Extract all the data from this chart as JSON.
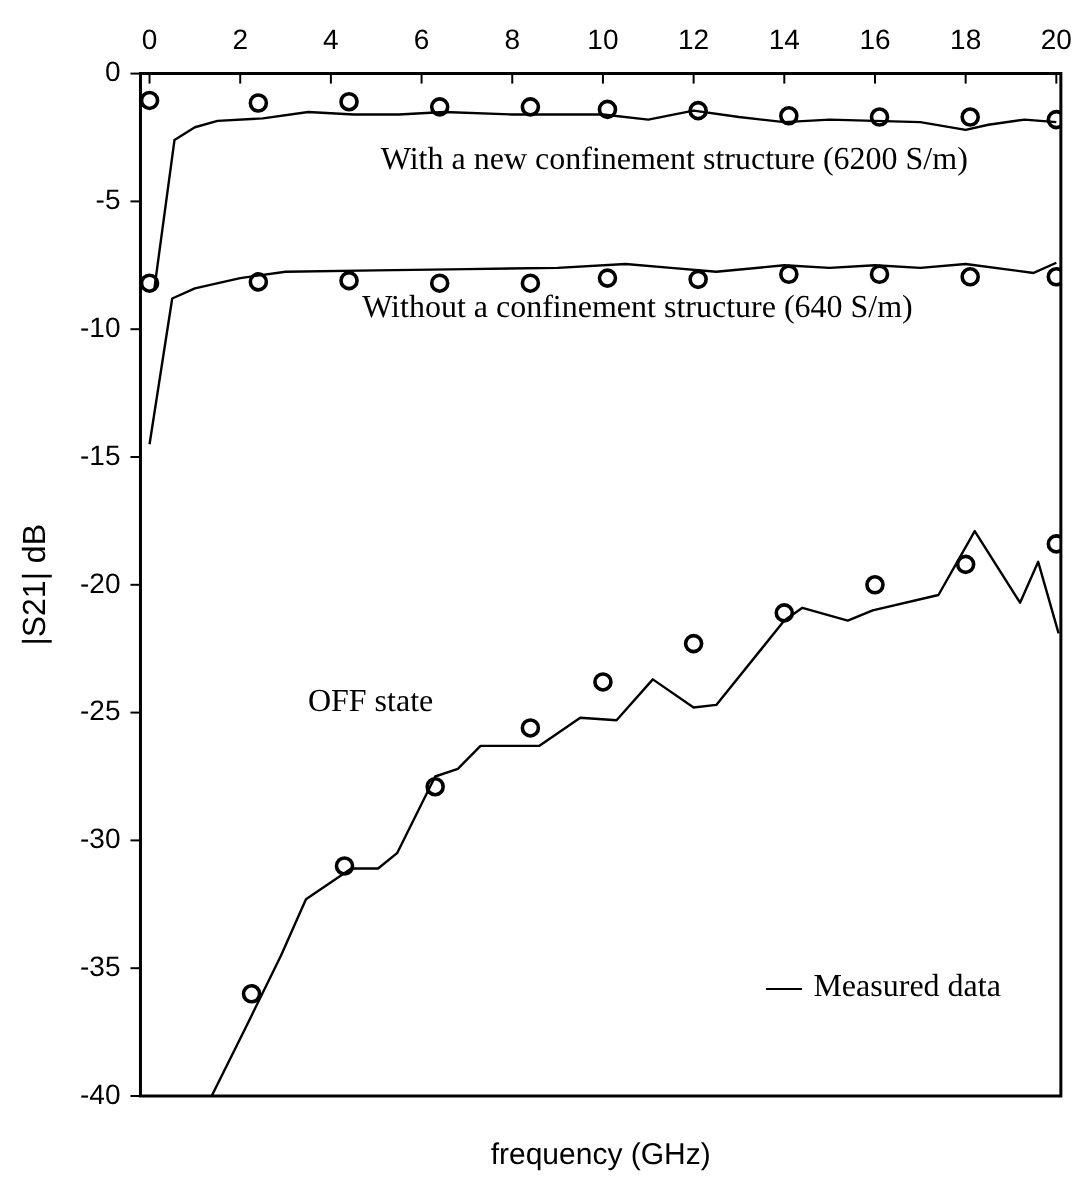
{
  "chart_data": {
    "type": "line",
    "xlabel": "frequency (GHz)",
    "ylabel": "|S21| dB",
    "xlim": [
      -0.2,
      20.1
    ],
    "xticks": [
      0,
      2,
      4,
      6,
      8,
      10,
      12,
      14,
      16,
      18,
      20
    ],
    "ylim": [
      -40,
      0
    ],
    "yticks": [
      -40,
      -35,
      -30,
      -25,
      -20,
      -15,
      -10,
      -5,
      0
    ],
    "grid": false,
    "legend": "bottom right",
    "line_style": "solid",
    "series": [
      {
        "name": "Measured data",
        "color": "#000000",
        "marker": "none",
        "x": [
          0.1,
          0.55,
          1,
          1.5,
          2.5,
          3.5,
          4.5,
          5.5,
          6.5,
          8,
          9,
          10,
          11,
          12,
          13,
          14,
          15,
          16,
          17,
          18,
          18.5,
          19.3,
          20
        ],
        "values": [
          -8.5,
          -2.6,
          -2.1,
          -1.85,
          -1.75,
          -1.5,
          -1.6,
          -1.6,
          -1.5,
          -1.6,
          -1.6,
          -1.6,
          -1.8,
          -1.45,
          -1.7,
          -1.9,
          -1.8,
          -1.85,
          -1.9,
          -2.2,
          -2,
          -1.8,
          -1.9
        ]
      },
      {
        "color": "#000000",
        "marker": "none",
        "x": [
          0,
          0.5,
          1,
          2,
          3,
          5,
          7,
          9,
          10.5,
          11.5,
          12.5,
          14,
          15,
          16,
          17,
          18,
          19.5,
          20
        ],
        "values": [
          -14.5,
          -8.8,
          -8.4,
          -8,
          -7.75,
          -7.7,
          -7.65,
          -7.6,
          -7.45,
          -7.6,
          -7.75,
          -7.5,
          -7.6,
          -7.5,
          -7.6,
          -7.45,
          -7.8,
          -7.4
        ]
      },
      {
        "color": "#000000",
        "marker": "none",
        "x": [
          1.37,
          2.1,
          2.9,
          3.45,
          4.45,
          5.04,
          5.46,
          6.3,
          6.8,
          7.3,
          8.6,
          9.5,
          10.3,
          11.1,
          12,
          12.5,
          14,
          14.4,
          15.4,
          15.95,
          17.4,
          18.2,
          19.2,
          19.6,
          20.05
        ],
        "values": [
          -40,
          -37.4,
          -34.5,
          -32.3,
          -31.1,
          -31.1,
          -30.5,
          -27.5,
          -27.2,
          -26.3,
          -26.3,
          -25.2,
          -25.3,
          -23.7,
          -24.8,
          -24.7,
          -21.4,
          -20.9,
          -21.4,
          -21,
          -20.4,
          -17.9,
          -20.7,
          -19.1,
          -21.9
        ]
      },
      {
        "type": "scatter",
        "color": "#000000",
        "marker": "circle",
        "x": [
          0,
          2.4,
          4.4,
          6.4,
          8.4,
          10.1,
          12.1,
          14.1,
          16.1,
          18.1,
          20
        ],
        "values": [
          -1.05,
          -1.15,
          -1.1,
          -1.3,
          -1.3,
          -1.4,
          -1.45,
          -1.65,
          -1.7,
          -1.7,
          -1.8
        ]
      },
      {
        "type": "scatter",
        "color": "#000000",
        "marker": "circle",
        "x": [
          0,
          2.4,
          4.4,
          6.4,
          8.4,
          10.1,
          12.1,
          14.1,
          16.1,
          18.1,
          20
        ],
        "values": [
          -8.2,
          -8.15,
          -8.1,
          -8.2,
          -8.2,
          -8,
          -8.05,
          -7.85,
          -7.85,
          -7.95,
          -7.95
        ]
      },
      {
        "type": "scatter",
        "color": "#000000",
        "marker": "circle",
        "x": [
          2.25,
          4.3,
          6.3,
          8.4,
          10,
          12,
          14,
          16,
          18,
          20
        ],
        "values": [
          -36,
          -31,
          -27.9,
          -25.6,
          -23.8,
          -22.3,
          -21.1,
          -20,
          -19.2,
          -18.4
        ]
      }
    ],
    "annotations": [
      "With a new confinement structure (6200 S/m)",
      "Without a confinement structure (640 S/m)",
      "OFF state"
    ]
  }
}
